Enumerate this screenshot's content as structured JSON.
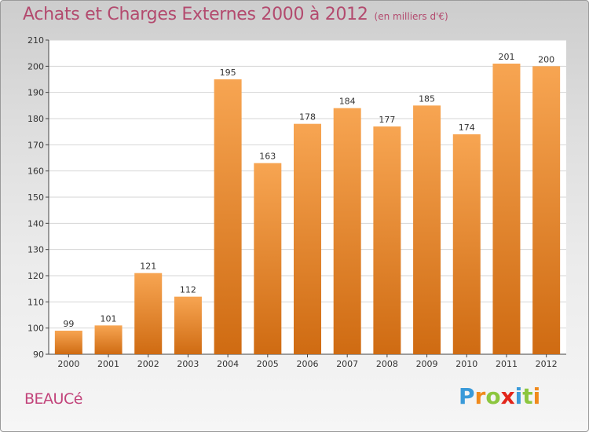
{
  "header": {
    "title": "Achats et Charges Externes 2000 à 2012",
    "subtitle": "(en milliers d'€)"
  },
  "commune_label": "BEAUCé",
  "logo": {
    "text": "Proxiti",
    "letters": [
      "P",
      "r",
      "o",
      "x",
      "i",
      "t",
      "i"
    ],
    "letter_colors": [
      "#3a9ad9",
      "#f08a1c",
      "#8cc63f",
      "#e2261b",
      "#3a9ad9",
      "#8cc63f",
      "#f08a1c"
    ]
  },
  "colors": {
    "bar_top": "#f7a552",
    "bar_bottom": "#cf6b12",
    "title": "#b34a6e",
    "commune": "#c2437a",
    "plot_background": "#ffffff",
    "grid": "#d6d6d6"
  },
  "chart_data": {
    "type": "bar",
    "title": "Achats et Charges Externes 2000 à 2012",
    "subtitle": "(en milliers d'€)",
    "categories": [
      "2000",
      "2001",
      "2002",
      "2003",
      "2004",
      "2005",
      "2006",
      "2007",
      "2008",
      "2009",
      "2010",
      "2011",
      "2012"
    ],
    "values": [
      99,
      101,
      121,
      112,
      195,
      163,
      178,
      184,
      177,
      185,
      174,
      201,
      200
    ],
    "data_labels": [
      "99",
      "101",
      "121",
      "112",
      "195",
      "163",
      "178",
      "184",
      "177",
      "185",
      "174",
      "201",
      "200"
    ],
    "yticks": [
      90,
      100,
      110,
      120,
      130,
      140,
      150,
      160,
      170,
      180,
      190,
      200,
      210
    ],
    "ytick_labels": [
      "90",
      "100",
      "110",
      "120",
      "130",
      "140",
      "150",
      "160",
      "170",
      "180",
      "190",
      "200",
      "210"
    ],
    "ylim": [
      90,
      210
    ],
    "xlabel": "",
    "ylabel": "",
    "grid": true,
    "legend": "none"
  }
}
